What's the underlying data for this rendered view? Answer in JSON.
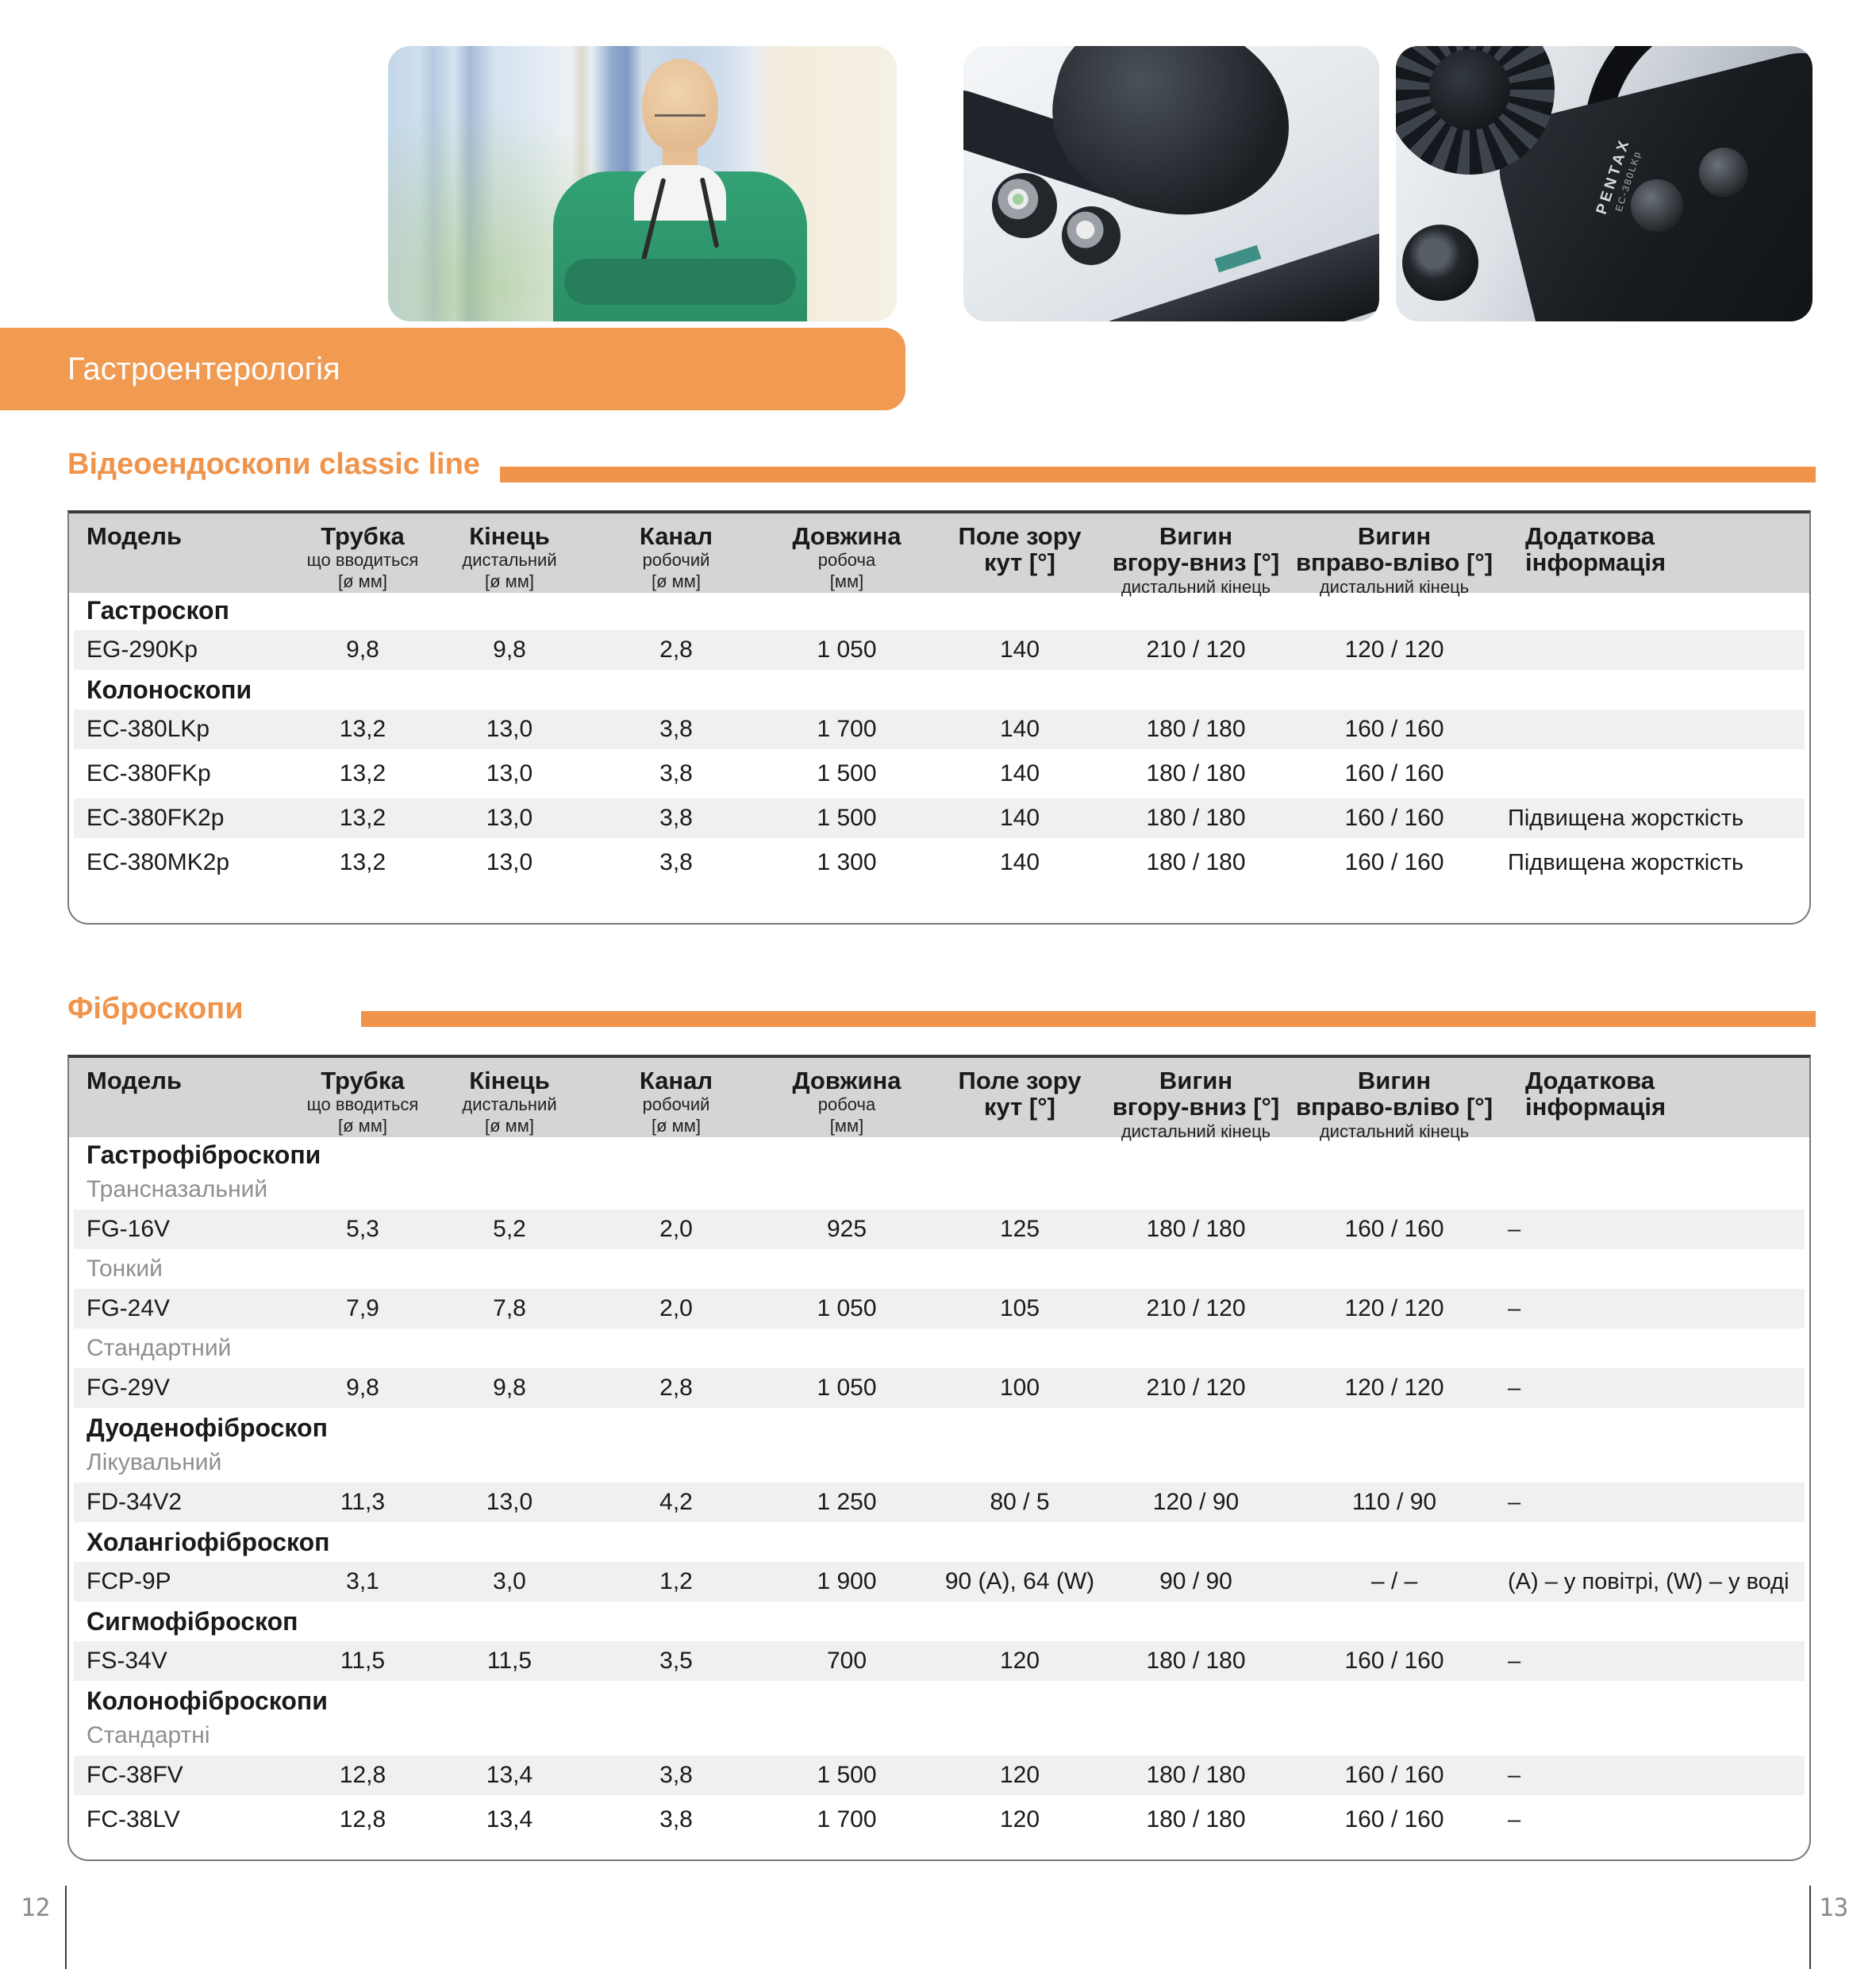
{
  "banner": {
    "title": "Гастроентерологія"
  },
  "photos": {
    "device_brand": "PENTAX",
    "device_model": "EC-380LKp"
  },
  "colors": {
    "accent_orange": "#F0944C",
    "banner_orange": "#F09A52",
    "table_header_bg": "#D5D5D6",
    "row_stripe": "#F0F0F0",
    "subgroup_text": "#8F8F8F",
    "footer_text": "#8A8A8A"
  },
  "sections": [
    {
      "title": "Відеоендоскопи classic line",
      "table": {
        "columns": [
          {
            "lines": [
              "Модель"
            ],
            "small": []
          },
          {
            "lines": [
              "Трубка"
            ],
            "small": [
              "що вводиться",
              "[ø мм]"
            ]
          },
          {
            "lines": [
              "Кінець"
            ],
            "small": [
              "дистальний",
              "[ø мм]"
            ]
          },
          {
            "lines": [
              "Канал"
            ],
            "small": [
              "робочий",
              "[ø мм]"
            ]
          },
          {
            "lines": [
              "Довжина"
            ],
            "small": [
              "робоча",
              "[мм]"
            ]
          },
          {
            "lines": [
              "Поле зору",
              "кут [°]"
            ],
            "small": []
          },
          {
            "lines": [
              "Вигин",
              "вгору-вниз [°]"
            ],
            "small": [
              "дистальний кінець"
            ]
          },
          {
            "lines": [
              "Вигин",
              "вправо-вліво [°]"
            ],
            "small": [
              "дистальний кінець"
            ]
          },
          {
            "lines": [
              "Додаткова",
              "інформація"
            ],
            "small": []
          }
        ],
        "rows": [
          {
            "type": "group",
            "label": "Гастроскоп"
          },
          {
            "type": "model",
            "model": "EG-290Kp",
            "striped": true,
            "values": [
              "9,8",
              "9,8",
              "2,8",
              "1 050",
              "140",
              "210 / 120",
              "120 / 120",
              ""
            ]
          },
          {
            "type": "group",
            "label": "Колоноскопи"
          },
          {
            "type": "model",
            "model": "EC-380LKp",
            "striped": true,
            "values": [
              "13,2",
              "13,0",
              "3,8",
              "1 700",
              "140",
              "180 / 180",
              "160 / 160",
              ""
            ]
          },
          {
            "type": "model",
            "model": "EC-380FKp",
            "striped": false,
            "values": [
              "13,2",
              "13,0",
              "3,8",
              "1 500",
              "140",
              "180 / 180",
              "160 / 160",
              ""
            ]
          },
          {
            "type": "model",
            "model": "EC-380FK2p",
            "striped": true,
            "values": [
              "13,2",
              "13,0",
              "3,8",
              "1 500",
              "140",
              "180 / 180",
              "160 / 160",
              "Підвищена жорсткість"
            ]
          },
          {
            "type": "model",
            "model": "EC-380MK2p",
            "striped": false,
            "values": [
              "13,2",
              "13,0",
              "3,8",
              "1 300",
              "140",
              "180 / 180",
              "160 / 160",
              "Підвищена жорсткість"
            ]
          }
        ]
      }
    },
    {
      "title": "Фіброскопи",
      "table": {
        "columns": [
          {
            "lines": [
              "Модель"
            ],
            "small": []
          },
          {
            "lines": [
              "Трубка"
            ],
            "small": [
              "що вводиться",
              "[ø мм]"
            ]
          },
          {
            "lines": [
              "Кінець"
            ],
            "small": [
              "дистальний",
              "[ø мм]"
            ]
          },
          {
            "lines": [
              "Канал"
            ],
            "small": [
              "робочий",
              "[ø мм]"
            ]
          },
          {
            "lines": [
              "Довжина"
            ],
            "small": [
              "робоча",
              "[мм]"
            ]
          },
          {
            "lines": [
              "Поле зору",
              "кут [°]"
            ],
            "small": []
          },
          {
            "lines": [
              "Вигин",
              "вгору-вниз [°]"
            ],
            "small": [
              "дистальний кінець"
            ]
          },
          {
            "lines": [
              "Вигин",
              "вправо-вліво [°]"
            ],
            "small": [
              "дистальний кінець"
            ]
          },
          {
            "lines": [
              "Додаткова",
              "інформація"
            ],
            "small": []
          }
        ],
        "rows": [
          {
            "type": "group",
            "label": "Гастрофіброскопи"
          },
          {
            "type": "subgroup",
            "label": "Трансназальний"
          },
          {
            "type": "model",
            "model": "FG-16V",
            "striped": true,
            "values": [
              "5,3",
              "5,2",
              "2,0",
              "925",
              "125",
              "180 / 180",
              "160 / 160",
              "–"
            ]
          },
          {
            "type": "subgroup",
            "label": "Тонкий"
          },
          {
            "type": "model",
            "model": "FG-24V",
            "striped": true,
            "values": [
              "7,9",
              "7,8",
              "2,0",
              "1 050",
              "105",
              "210 / 120",
              "120 / 120",
              "–"
            ]
          },
          {
            "type": "subgroup",
            "label": "Стандартний"
          },
          {
            "type": "model",
            "model": "FG-29V",
            "striped": true,
            "values": [
              "9,8",
              "9,8",
              "2,8",
              "1 050",
              "100",
              "210 / 120",
              "120 / 120",
              "–"
            ]
          },
          {
            "type": "group",
            "label": "Дуоденофіброскоп"
          },
          {
            "type": "subgroup",
            "label": "Лікувальний"
          },
          {
            "type": "model",
            "model": "FD-34V2",
            "striped": true,
            "values": [
              "11,3",
              "13,0",
              "4,2",
              "1 250",
              "80 / 5",
              "120 / 90",
              "110 / 90",
              "–"
            ]
          },
          {
            "type": "group",
            "label": "Холангіофіброскоп"
          },
          {
            "type": "model",
            "model": "FCP-9P",
            "striped": true,
            "values": [
              "3,1",
              "3,0",
              "1,2",
              "1 900",
              "90 (A), 64 (W)",
              "90 / 90",
              "– / –",
              "(A) – у повітрі, (W) – у воді"
            ]
          },
          {
            "type": "group",
            "label": "Сигмофіброскоп"
          },
          {
            "type": "model",
            "model": "FS-34V",
            "striped": true,
            "values": [
              "11,5",
              "11,5",
              "3,5",
              "700",
              "120",
              "180 / 180",
              "160 / 160",
              "–"
            ]
          },
          {
            "type": "group",
            "label": "Колонофіброскопи"
          },
          {
            "type": "subgroup",
            "label": "Стандартні"
          },
          {
            "type": "model",
            "model": "FC-38FV",
            "striped": true,
            "values": [
              "12,8",
              "13,4",
              "3,8",
              "1 500",
              "120",
              "180 / 180",
              "160 / 160",
              "–"
            ]
          },
          {
            "type": "model",
            "model": "FC-38LV",
            "striped": false,
            "values": [
              "12,8",
              "13,4",
              "3,8",
              "1 700",
              "120",
              "180 / 180",
              "160 / 160",
              "–"
            ]
          }
        ]
      }
    }
  ],
  "footer": {
    "left_page": "12",
    "right_page": "13"
  }
}
